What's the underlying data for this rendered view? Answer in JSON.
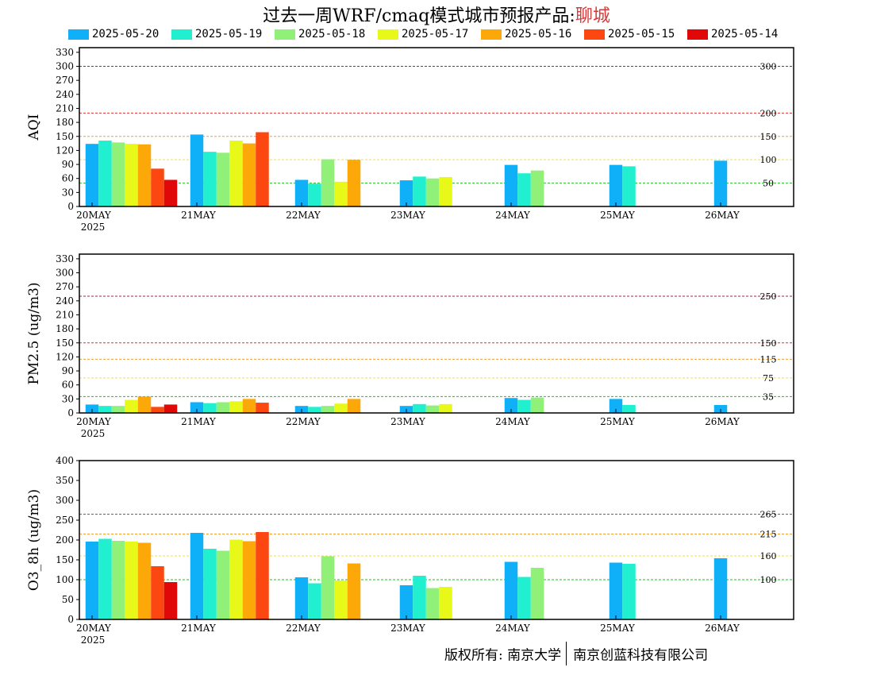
{
  "title": {
    "prefix": "过去一周WRF/cmaq模式城市预报产品:",
    "city": "聊城"
  },
  "legend": [
    {
      "label": "2025-05-20",
      "color": "#10b0f8"
    },
    {
      "label": "2025-05-19",
      "color": "#20f0d0"
    },
    {
      "label": "2025-05-18",
      "color": "#90f078"
    },
    {
      "label": "2025-05-17",
      "color": "#e8f818"
    },
    {
      "label": "2025-05-16",
      "color": "#fca808"
    },
    {
      "label": "2025-05-15",
      "color": "#fc4810"
    },
    {
      "label": "2025-05-14",
      "color": "#e00808"
    }
  ],
  "footer": {
    "left": "版权所有: 南京大学",
    "right": "南京创蓝科技有限公司"
  },
  "chart_data": [
    {
      "type": "bar",
      "ylabel": "AQI",
      "ylim": [
        0,
        340
      ],
      "yticks": [
        "0",
        "30",
        "60",
        "90",
        "120",
        "150",
        "180",
        "210",
        "240",
        "270",
        "300",
        "330"
      ],
      "categories": [
        "20MAY",
        "21MAY",
        "22MAY",
        "23MAY",
        "24MAY",
        "25MAY",
        "26MAY"
      ],
      "year_label": "2025",
      "thresholds": [
        {
          "value": 50,
          "label": "50",
          "color": "#20c020"
        },
        {
          "value": 100,
          "label": "100",
          "color": "#f0e040"
        },
        {
          "value": 150,
          "label": "150",
          "color": "#f0a030"
        },
        {
          "value": 200,
          "label": "200",
          "color": "#e03030"
        },
        {
          "value": 300,
          "label": "300",
          "color": "#a0205a"
        }
      ],
      "series": [
        {
          "name": "2025-05-20",
          "values": [
            134,
            154,
            57,
            56,
            89,
            89,
            98
          ]
        },
        {
          "name": "2025-05-19",
          "values": [
            141,
            117,
            49,
            64,
            71,
            86,
            null
          ]
        },
        {
          "name": "2025-05-18",
          "values": [
            137,
            115,
            101,
            60,
            77,
            null,
            null
          ]
        },
        {
          "name": "2025-05-17",
          "values": [
            134,
            141,
            53,
            63,
            null,
            null,
            null
          ]
        },
        {
          "name": "2025-05-16",
          "values": [
            133,
            135,
            100,
            null,
            null,
            null,
            null
          ]
        },
        {
          "name": "2025-05-15",
          "values": [
            81,
            159,
            null,
            null,
            null,
            null,
            null
          ]
        },
        {
          "name": "2025-05-14",
          "values": [
            57,
            null,
            null,
            null,
            null,
            null,
            null
          ]
        }
      ]
    },
    {
      "type": "bar",
      "ylabel": "PM2.5 (ug/m3)",
      "ylim": [
        0,
        340
      ],
      "yticks": [
        "0",
        "30",
        "60",
        "90",
        "120",
        "150",
        "180",
        "210",
        "240",
        "270",
        "300",
        "330"
      ],
      "categories": [
        "20MAY",
        "21MAY",
        "22MAY",
        "23MAY",
        "24MAY",
        "25MAY",
        "26MAY"
      ],
      "year_label": "2025",
      "thresholds": [
        {
          "value": 35,
          "label": "35",
          "color": "#20c020"
        },
        {
          "value": 75,
          "label": "75",
          "color": "#f0e040"
        },
        {
          "value": 115,
          "label": "115",
          "color": "#f0a030"
        },
        {
          "value": 150,
          "label": "150",
          "color": "#e03030"
        },
        {
          "value": 250,
          "label": "250",
          "color": "#a0205a"
        }
      ],
      "series": [
        {
          "name": "2025-05-20",
          "values": [
            18,
            23,
            15,
            15,
            32,
            30,
            17
          ]
        },
        {
          "name": "2025-05-19",
          "values": [
            15,
            21,
            13,
            19,
            28,
            17,
            null
          ]
        },
        {
          "name": "2025-05-18",
          "values": [
            15,
            23,
            15,
            16,
            33,
            null,
            null
          ]
        },
        {
          "name": "2025-05-17",
          "values": [
            28,
            25,
            20,
            19,
            null,
            null,
            null
          ]
        },
        {
          "name": "2025-05-16",
          "values": [
            35,
            30,
            30,
            null,
            null,
            null,
            null
          ]
        },
        {
          "name": "2025-05-15",
          "values": [
            13,
            22,
            null,
            null,
            null,
            null,
            null
          ]
        },
        {
          "name": "2025-05-14",
          "values": [
            18,
            null,
            null,
            null,
            null,
            null,
            null
          ]
        }
      ]
    },
    {
      "type": "bar",
      "ylabel": "O3_8h (ug/m3)",
      "ylim": [
        0,
        400
      ],
      "yticks": [
        "0",
        "50",
        "100",
        "150",
        "200",
        "250",
        "300",
        "350",
        "400"
      ],
      "categories": [
        "20MAY",
        "21MAY",
        "22MAY",
        "23MAY",
        "24MAY",
        "25MAY",
        "26MAY"
      ],
      "year_label": "2025",
      "thresholds": [
        {
          "value": 100,
          "label": "100",
          "color": "#20c020"
        },
        {
          "value": 160,
          "label": "160",
          "color": "#f0e040"
        },
        {
          "value": 215,
          "label": "215",
          "color": "#f0a030"
        },
        {
          "value": 265,
          "label": "265",
          "color": "#e03030"
        }
      ],
      "series": [
        {
          "name": "2025-05-20",
          "values": [
            196,
            218,
            106,
            86,
            145,
            143,
            154
          ]
        },
        {
          "name": "2025-05-19",
          "values": [
            203,
            178,
            91,
            110,
            107,
            140,
            null
          ]
        },
        {
          "name": "2025-05-18",
          "values": [
            198,
            173,
            159,
            79,
            130,
            null,
            null
          ]
        },
        {
          "name": "2025-05-17",
          "values": [
            196,
            201,
            98,
            82,
            null,
            null,
            null
          ]
        },
        {
          "name": "2025-05-16",
          "values": [
            193,
            197,
            141,
            null,
            null,
            null,
            null
          ]
        },
        {
          "name": "2025-05-15",
          "values": [
            134,
            220,
            null,
            null,
            null,
            null,
            null
          ]
        },
        {
          "name": "2025-05-14",
          "values": [
            94,
            null,
            null,
            null,
            null,
            null,
            null
          ]
        }
      ]
    }
  ]
}
